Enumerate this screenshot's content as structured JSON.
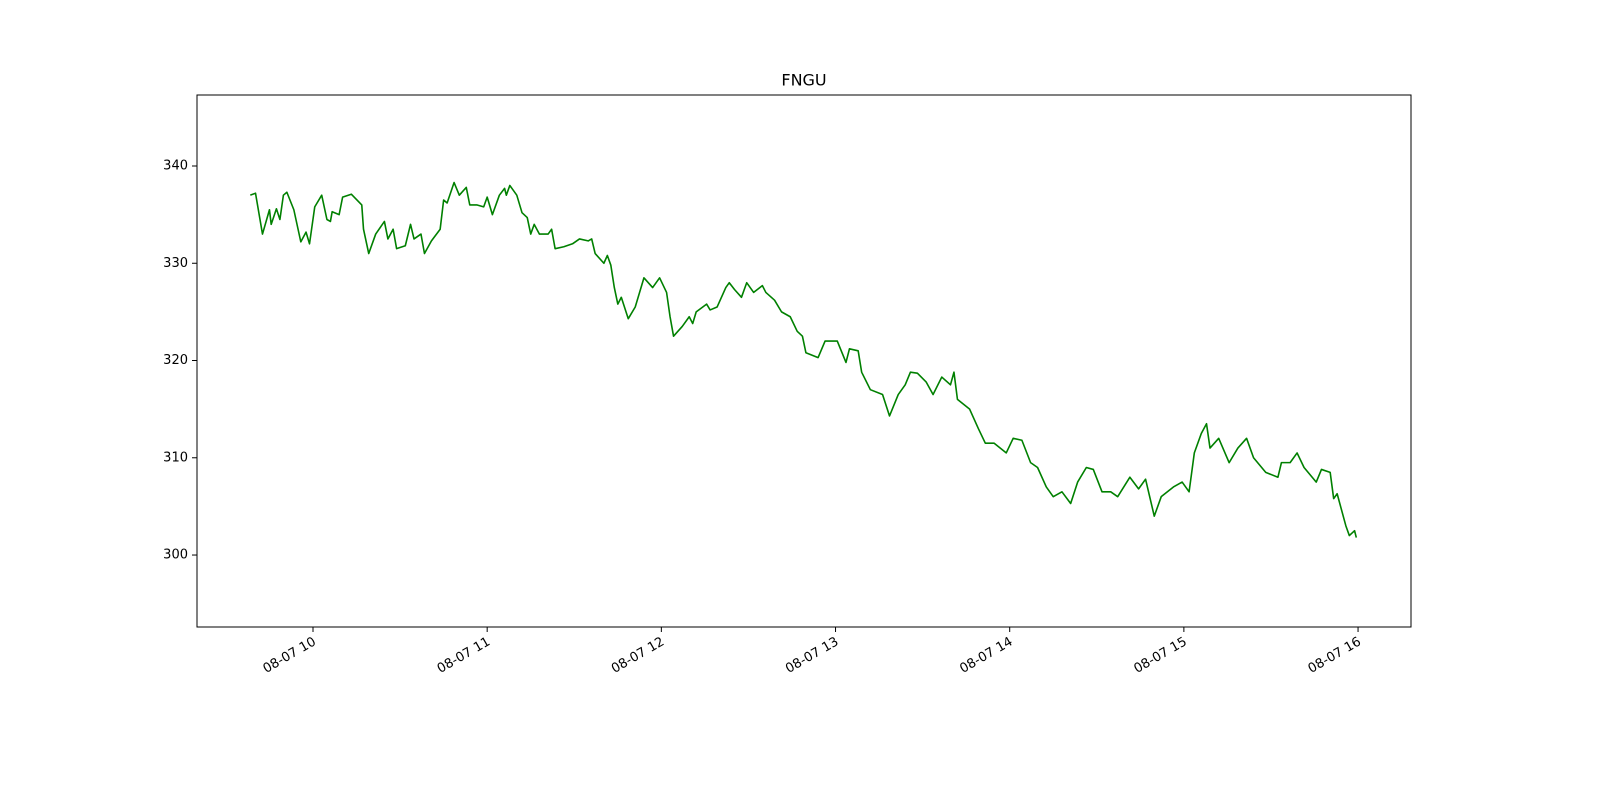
{
  "chart_data": {
    "type": "line",
    "title": "FNGU",
    "x": [
      9.64,
      9.67,
      9.71,
      9.75,
      9.76,
      9.79,
      9.81,
      9.83,
      9.85,
      9.89,
      9.93,
      9.96,
      9.98,
      10.01,
      10.05,
      10.08,
      10.1,
      10.11,
      10.15,
      10.17,
      10.22,
      10.28,
      10.29,
      10.32,
      10.36,
      10.41,
      10.43,
      10.46,
      10.48,
      10.53,
      10.56,
      10.58,
      10.62,
      10.64,
      10.68,
      10.73,
      10.75,
      10.77,
      10.81,
      10.84,
      10.88,
      10.9,
      10.94,
      10.98,
      11.0,
      11.03,
      11.07,
      11.1,
      11.11,
      11.13,
      11.17,
      11.2,
      11.23,
      11.25,
      11.27,
      11.3,
      11.35,
      11.37,
      11.39,
      11.44,
      11.49,
      11.53,
      11.58,
      11.6,
      11.62,
      11.67,
      11.69,
      11.71,
      11.73,
      11.75,
      11.77,
      11.81,
      11.85,
      11.9,
      11.95,
      11.99,
      12.03,
      12.05,
      12.07,
      12.12,
      12.16,
      12.18,
      12.2,
      12.26,
      12.28,
      12.32,
      12.37,
      12.39,
      12.42,
      12.46,
      12.49,
      12.53,
      12.58,
      12.6,
      12.65,
      12.69,
      12.74,
      12.78,
      12.81,
      12.83,
      12.9,
      12.94,
      13.01,
      13.06,
      13.08,
      13.13,
      13.15,
      13.2,
      13.27,
      13.31,
      13.36,
      13.4,
      13.43,
      13.47,
      13.52,
      13.56,
      13.61,
      13.66,
      13.68,
      13.7,
      13.77,
      13.82,
      13.86,
      13.91,
      13.98,
      14.02,
      14.07,
      14.12,
      14.16,
      14.21,
      14.25,
      14.3,
      14.35,
      14.39,
      14.44,
      14.48,
      14.53,
      14.58,
      14.62,
      14.69,
      14.74,
      14.78,
      14.83,
      14.87,
      14.94,
      14.99,
      15.03,
      15.06,
      15.1,
      15.13,
      15.15,
      15.2,
      15.26,
      15.31,
      15.36,
      15.4,
      15.47,
      15.54,
      15.56,
      15.61,
      15.65,
      15.69,
      15.76,
      15.79,
      15.84,
      15.86,
      15.88,
      15.93,
      15.95,
      15.98,
      15.99
    ],
    "series": [
      {
        "color": "#008000",
        "values": [
          337.0,
          337.2,
          333.0,
          335.5,
          334.0,
          335.6,
          334.5,
          337.0,
          337.3,
          335.5,
          332.2,
          333.2,
          332.0,
          335.8,
          337.0,
          334.5,
          334.3,
          335.3,
          335.0,
          336.8,
          337.1,
          336.0,
          333.5,
          331.0,
          333.0,
          334.3,
          332.5,
          333.5,
          331.5,
          331.8,
          334.0,
          332.5,
          333.0,
          331.0,
          332.3,
          333.5,
          336.5,
          336.2,
          338.3,
          337.0,
          337.8,
          336.0,
          336.0,
          335.8,
          336.8,
          335.0,
          337.0,
          337.7,
          337.0,
          338.0,
          337.0,
          335.2,
          334.7,
          333.0,
          334.0,
          333.0,
          333.0,
          333.5,
          331.5,
          331.7,
          332.0,
          332.5,
          332.3,
          332.5,
          331.0,
          330.0,
          330.8,
          329.8,
          327.5,
          325.8,
          326.5,
          324.3,
          325.5,
          328.5,
          327.5,
          328.5,
          327.0,
          324.5,
          322.5,
          323.5,
          324.5,
          323.8,
          325.0,
          325.8,
          325.2,
          325.5,
          327.5,
          328.0,
          327.3,
          326.5,
          328.0,
          327.0,
          327.7,
          327.0,
          326.2,
          325.0,
          324.5,
          323.0,
          322.5,
          320.8,
          320.3,
          322.0,
          322.0,
          319.8,
          321.2,
          321.0,
          318.8,
          317.0,
          316.5,
          314.3,
          316.5,
          317.5,
          318.8,
          318.7,
          317.8,
          316.5,
          318.3,
          317.5,
          318.8,
          316.0,
          315.0,
          313.0,
          311.5,
          311.5,
          310.5,
          312.0,
          311.8,
          309.5,
          309.0,
          307.0,
          306.0,
          306.5,
          305.3,
          307.5,
          309.0,
          308.8,
          306.5,
          306.5,
          306.0,
          308.0,
          306.8,
          307.8,
          304.0,
          306.0,
          307.0,
          307.5,
          306.5,
          310.5,
          312.5,
          313.5,
          311.0,
          312.0,
          309.5,
          311.0,
          312.0,
          310.0,
          308.5,
          308.0,
          309.5,
          309.5,
          310.5,
          309.0,
          307.5,
          308.8,
          308.5,
          305.8,
          306.3,
          303.0,
          302.0,
          302.5,
          301.8
        ]
      }
    ],
    "xlim": [
      9.334,
      16.304
    ],
    "xticks": [
      {
        "value": 10,
        "label": "08-07 10"
      },
      {
        "value": 11,
        "label": "08-07 11"
      },
      {
        "value": 12,
        "label": "08-07 12"
      },
      {
        "value": 13,
        "label": "08-07 13"
      },
      {
        "value": 14,
        "label": "08-07 14"
      },
      {
        "value": 15,
        "label": "08-07 15"
      },
      {
        "value": 16,
        "label": "08-07 16"
      }
    ],
    "ylim": [
      292.6,
      347.3
    ],
    "yticks": [
      300,
      310,
      320,
      330,
      340
    ],
    "grid": false
  }
}
